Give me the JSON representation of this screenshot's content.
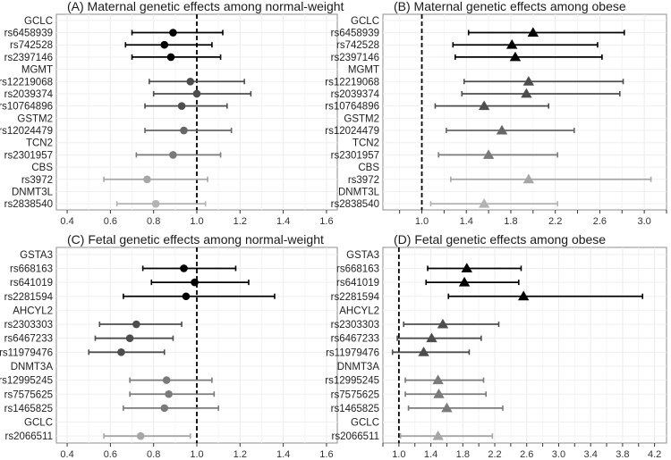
{
  "chart_data": [
    {
      "type": "forest",
      "title": "(A) Maternal genetic effects among normal-weight",
      "marker": "circle",
      "reference": 1.0,
      "xlim": [
        0.35,
        1.65
      ],
      "xticks": [
        "0.4",
        "0.6",
        "0.8",
        "1.0",
        "1.2",
        "1.4",
        "1.6"
      ],
      "xtick_values": [
        0.4,
        0.6,
        0.8,
        1.0,
        1.2,
        1.4,
        1.6
      ],
      "rows": [
        {
          "label": "GCLC",
          "header": true
        },
        {
          "label": "rs6458939",
          "est": 0.89,
          "lo": 0.7,
          "hi": 1.12,
          "color": "#000000"
        },
        {
          "label": "rs742528",
          "est": 0.85,
          "lo": 0.67,
          "hi": 1.07,
          "color": "#000000"
        },
        {
          "label": "rs2397146",
          "est": 0.88,
          "lo": 0.7,
          "hi": 1.11,
          "color": "#000000"
        },
        {
          "label": "MGMT",
          "header": true
        },
        {
          "label": "rs12219068",
          "est": 0.97,
          "lo": 0.78,
          "hi": 1.22,
          "color": "#4d4d4d"
        },
        {
          "label": "rs2039374",
          "est": 1.0,
          "lo": 0.8,
          "hi": 1.25,
          "color": "#4d4d4d"
        },
        {
          "label": "rs10764896",
          "est": 0.93,
          "lo": 0.76,
          "hi": 1.14,
          "color": "#4d4d4d"
        },
        {
          "label": "GSTM2",
          "header": true
        },
        {
          "label": "rs12024479",
          "est": 0.94,
          "lo": 0.76,
          "hi": 1.16,
          "color": "#666666"
        },
        {
          "label": "TCN2",
          "header": true
        },
        {
          "label": "rs2301957",
          "est": 0.89,
          "lo": 0.72,
          "hi": 1.11,
          "color": "#7a7a7a"
        },
        {
          "label": "CBS",
          "header": true
        },
        {
          "label": "rs3972",
          "est": 0.77,
          "lo": 0.57,
          "hi": 1.05,
          "color": "#a6a6a6"
        },
        {
          "label": "DNMT3L",
          "header": true
        },
        {
          "label": "rs2838540",
          "est": 0.81,
          "lo": 0.63,
          "hi": 1.04,
          "color": "#b3b3b3"
        }
      ]
    },
    {
      "type": "forest",
      "title": "(B) Maternal genetic effects among obese",
      "marker": "triangle",
      "reference": 1.0,
      "xlim": [
        0.65,
        3.2
      ],
      "xticks": [
        "1.0",
        "1.4",
        "1.8",
        "2.2",
        "2.6",
        "3.0"
      ],
      "xtick_values": [
        1.0,
        1.4,
        1.8,
        2.2,
        2.6,
        3.0
      ],
      "minor_ticks": [
        0.8,
        1.2,
        1.6,
        2.0,
        2.4,
        2.8,
        3.2
      ],
      "rows": [
        {
          "label": "GCLC",
          "header": true
        },
        {
          "label": "rs6458939",
          "est": 2.0,
          "lo": 1.42,
          "hi": 2.82,
          "color": "#000000"
        },
        {
          "label": "rs742528",
          "est": 1.81,
          "lo": 1.28,
          "hi": 2.58,
          "color": "#000000"
        },
        {
          "label": "rs2397146",
          "est": 1.84,
          "lo": 1.3,
          "hi": 2.62,
          "color": "#000000"
        },
        {
          "label": "MGMT",
          "header": true
        },
        {
          "label": "rs12219068",
          "est": 1.96,
          "lo": 1.38,
          "hi": 2.81,
          "color": "#4d4d4d"
        },
        {
          "label": "rs2039374",
          "est": 1.94,
          "lo": 1.36,
          "hi": 2.78,
          "color": "#4d4d4d"
        },
        {
          "label": "rs10764896",
          "est": 1.56,
          "lo": 1.12,
          "hi": 2.14,
          "color": "#4d4d4d"
        },
        {
          "label": "GSTM2",
          "header": true
        },
        {
          "label": "rs12024479",
          "est": 1.72,
          "lo": 1.22,
          "hi": 2.37,
          "color": "#666666"
        },
        {
          "label": "TCN2",
          "header": true
        },
        {
          "label": "rs2301957",
          "est": 1.6,
          "lo": 1.15,
          "hi": 2.22,
          "color": "#7a7a7a"
        },
        {
          "label": "CBS",
          "header": true
        },
        {
          "label": "rs3972",
          "est": 1.96,
          "lo": 1.26,
          "hi": 3.06,
          "color": "#a6a6a6"
        },
        {
          "label": "DNMT3L",
          "header": true
        },
        {
          "label": "rs2838540",
          "est": 1.56,
          "lo": 1.08,
          "hi": 2.22,
          "color": "#b3b3b3"
        }
      ]
    },
    {
      "type": "forest",
      "title": "(C) Fetal genetic effects among normal-weight",
      "marker": "circle",
      "reference": 1.0,
      "xlim": [
        0.35,
        1.65
      ],
      "xticks": [
        "0.4",
        "0.6",
        "0.8",
        "1.0",
        "1.2",
        "1.4",
        "1.6"
      ],
      "xtick_values": [
        0.4,
        0.6,
        0.8,
        1.0,
        1.2,
        1.4,
        1.6
      ],
      "rows": [
        {
          "label": "GSTA3",
          "header": true
        },
        {
          "label": "rs668163",
          "est": 0.94,
          "lo": 0.75,
          "hi": 1.18,
          "color": "#000000"
        },
        {
          "label": "rs641019",
          "est": 0.99,
          "lo": 0.79,
          "hi": 1.24,
          "color": "#000000"
        },
        {
          "label": "rs2281594",
          "est": 0.95,
          "lo": 0.66,
          "hi": 1.36,
          "color": "#000000"
        },
        {
          "label": "AHCYL2",
          "header": true
        },
        {
          "label": "rs2303303",
          "est": 0.72,
          "lo": 0.55,
          "hi": 0.93,
          "color": "#4d4d4d"
        },
        {
          "label": "rs6467233",
          "est": 0.69,
          "lo": 0.53,
          "hi": 0.89,
          "color": "#4d4d4d"
        },
        {
          "label": "rs11979476",
          "est": 0.65,
          "lo": 0.5,
          "hi": 0.85,
          "color": "#4d4d4d"
        },
        {
          "label": "DNMT3A",
          "header": true
        },
        {
          "label": "rs12995245",
          "est": 0.86,
          "lo": 0.69,
          "hi": 1.07,
          "color": "#7a7a7a"
        },
        {
          "label": "rs7575625",
          "est": 0.87,
          "lo": 0.69,
          "hi": 1.08,
          "color": "#7a7a7a"
        },
        {
          "label": "rs1465825",
          "est": 0.85,
          "lo": 0.66,
          "hi": 1.1,
          "color": "#7a7a7a"
        },
        {
          "label": "GCLC",
          "header": true
        },
        {
          "label": "rs2066511",
          "est": 0.74,
          "lo": 0.57,
          "hi": 0.97,
          "color": "#a6a6a6"
        }
      ]
    },
    {
      "type": "forest",
      "title": "(D) Fetal genetic effects among obese",
      "marker": "triangle",
      "reference": 1.0,
      "xlim": [
        0.8,
        4.35
      ],
      "xticks": [
        "1.0",
        "1.4",
        "1.8",
        "2.2",
        "2.6",
        "3.0",
        "3.4",
        "3.8",
        "4.2"
      ],
      "xtick_values": [
        1.0,
        1.4,
        1.8,
        2.2,
        2.6,
        3.0,
        3.4,
        3.8,
        4.2
      ],
      "minor_ticks": [
        0.8,
        1.2,
        1.6,
        2.0,
        2.4,
        2.8,
        3.2,
        3.6,
        4.0
      ],
      "rows": [
        {
          "label": "GSTA3",
          "header": true
        },
        {
          "label": "rs668163",
          "est": 1.85,
          "lo": 1.36,
          "hi": 2.53,
          "color": "#000000"
        },
        {
          "label": "rs641019",
          "est": 1.82,
          "lo": 1.34,
          "hi": 2.5,
          "color": "#000000"
        },
        {
          "label": "rs2281594",
          "est": 2.56,
          "lo": 1.62,
          "hi": 4.05,
          "color": "#000000"
        },
        {
          "label": "AHCYL2",
          "header": true
        },
        {
          "label": "rs2303303",
          "est": 1.55,
          "lo": 1.06,
          "hi": 2.25,
          "color": "#4d4d4d"
        },
        {
          "label": "rs6467233",
          "est": 1.41,
          "lo": 0.98,
          "hi": 2.03,
          "color": "#4d4d4d"
        },
        {
          "label": "rs11979476",
          "est": 1.31,
          "lo": 0.92,
          "hi": 1.88,
          "color": "#4d4d4d"
        },
        {
          "label": "DNMT3A",
          "header": true
        },
        {
          "label": "rs12995245",
          "est": 1.49,
          "lo": 1.08,
          "hi": 2.06,
          "color": "#7a7a7a"
        },
        {
          "label": "rs7575625",
          "est": 1.5,
          "lo": 1.08,
          "hi": 2.09,
          "color": "#7a7a7a"
        },
        {
          "label": "rs1465825",
          "est": 1.6,
          "lo": 1.12,
          "hi": 2.3,
          "color": "#7a7a7a"
        },
        {
          "label": "GCLC",
          "header": true
        },
        {
          "label": "rs2066511",
          "est": 1.49,
          "lo": 1.02,
          "hi": 2.17,
          "color": "#a6a6a6"
        }
      ]
    }
  ]
}
